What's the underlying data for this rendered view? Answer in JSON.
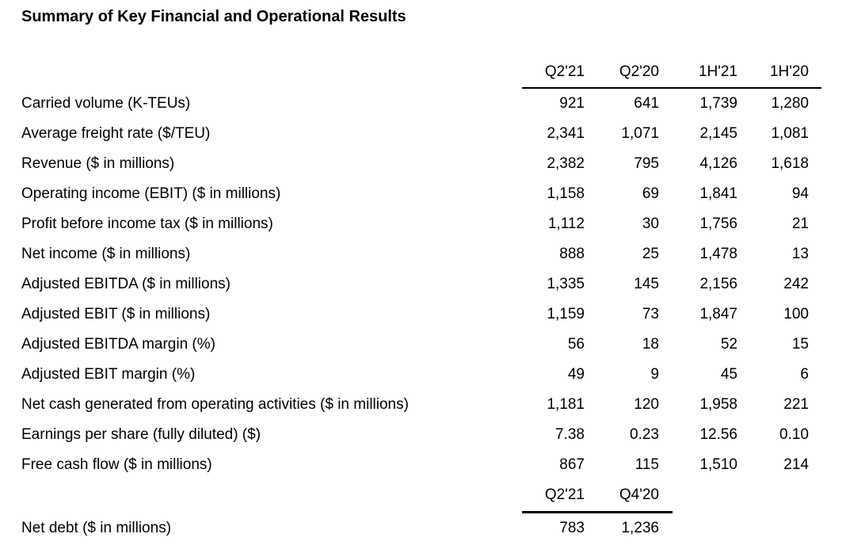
{
  "page": {
    "title": "Summary of Key Financial and Operational Results"
  },
  "colors": {
    "background": "#ffffff",
    "text": "#000000",
    "rule": "#000000"
  },
  "main_table": {
    "columns": [
      "Q2'21",
      "Q2'20",
      "1H'21",
      "1H'20"
    ],
    "rows": [
      {
        "label": "Carried volume (K-TEUs)",
        "values": [
          "921",
          "641",
          "1,739",
          "1,280"
        ]
      },
      {
        "label": "Average freight rate ($/TEU)",
        "values": [
          "2,341",
          "1,071",
          "2,145",
          "1,081"
        ]
      },
      {
        "label": "Revenue ($ in millions)",
        "values": [
          "2,382",
          "795",
          "4,126",
          "1,618"
        ]
      },
      {
        "label": "Operating income (EBIT) ($ in millions)",
        "values": [
          "1,158",
          "69",
          "1,841",
          "94"
        ]
      },
      {
        "label": "Profit before income tax ($ in millions)",
        "values": [
          "1,112",
          "30",
          "1,756",
          "21"
        ]
      },
      {
        "label": "Net income ($ in millions)",
        "values": [
          "888",
          "25",
          "1,478",
          "13"
        ]
      },
      {
        "label": "Adjusted EBITDA ($ in millions)",
        "values": [
          "1,335",
          "145",
          "2,156",
          "242"
        ]
      },
      {
        "label": "Adjusted EBIT ($ in millions)",
        "values": [
          "1,159",
          "73",
          "1,847",
          "100"
        ]
      },
      {
        "label": "Adjusted EBITDA margin (%)",
        "values": [
          "56",
          "18",
          "52",
          "15"
        ]
      },
      {
        "label": "Adjusted EBIT margin (%)",
        "values": [
          "49",
          "9",
          "45",
          "6"
        ]
      },
      {
        "label": "Net cash generated from operating activities ($ in millions)",
        "values": [
          "1,181",
          "120",
          "1,958",
          "221"
        ]
      },
      {
        "label": "Earnings per share (fully diluted) ($)",
        "values": [
          "7.38",
          "0.23",
          "12.56",
          "0.10"
        ]
      },
      {
        "label": "Free cash flow ($ in millions)",
        "values": [
          "867",
          "115",
          "1,510",
          "214"
        ]
      }
    ]
  },
  "secondary_table": {
    "columns": [
      "Q2'21",
      "Q4'20"
    ],
    "rows": [
      {
        "label": "Net debt ($ in millions)",
        "values": [
          "783",
          "1,236"
        ]
      }
    ]
  }
}
